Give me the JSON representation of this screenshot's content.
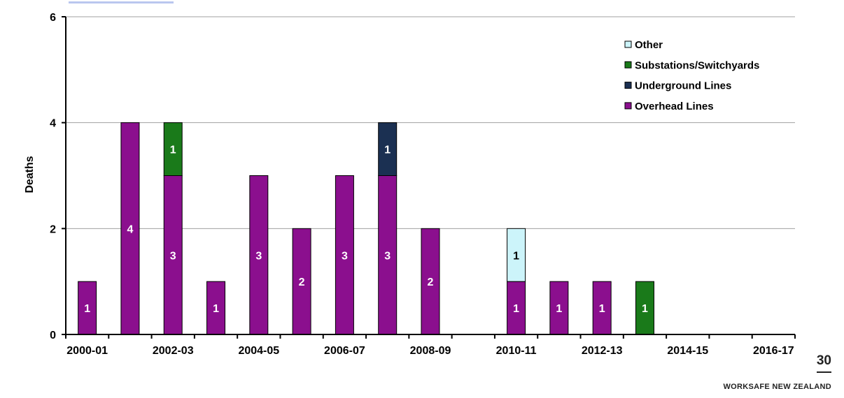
{
  "chart_data": {
    "type": "bar",
    "stacked": true,
    "ylabel": "Deaths",
    "xlabel": "",
    "ylim": [
      0,
      6
    ],
    "yticks": [
      0,
      2,
      4,
      6
    ],
    "grid": true,
    "legend_position": "top-right",
    "x_tick_labels": [
      "2000-01",
      "2002-03",
      "2004-05",
      "2006-07",
      "2008-09",
      "2010-11",
      "2012-13",
      "2014-15",
      "2016-17"
    ],
    "x_tick_label_every": 2,
    "categories": [
      "2000-01",
      "2001-02",
      "2002-03",
      "2003-04",
      "2004-05",
      "2005-06",
      "2006-07",
      "2007-08",
      "2008-09",
      "2009-10",
      "2010-11",
      "2011-12",
      "2012-13",
      "2013-14",
      "2014-15",
      "2015-16",
      "2016-17"
    ],
    "series": [
      {
        "name": "Overhead Lines",
        "color": "#8b0f8e",
        "values": [
          1,
          4,
          3,
          1,
          3,
          2,
          3,
          3,
          2,
          0,
          1,
          1,
          1,
          0,
          0,
          0,
          0
        ]
      },
      {
        "name": "Underground Lines",
        "color": "#1b3052",
        "values": [
          0,
          0,
          0,
          0,
          0,
          0,
          0,
          1,
          0,
          0,
          0,
          0,
          0,
          0,
          0,
          0,
          0
        ]
      },
      {
        "name": "Substations/Switchyards",
        "color": "#1a7a1a",
        "values": [
          0,
          0,
          1,
          0,
          0,
          0,
          0,
          0,
          0,
          0,
          0,
          0,
          0,
          1,
          0,
          0,
          0
        ]
      },
      {
        "name": "Other",
        "color": "#ccf4fa",
        "values": [
          0,
          0,
          0,
          0,
          0,
          0,
          0,
          0,
          0,
          0,
          1,
          0,
          0,
          0,
          0,
          0,
          0
        ]
      }
    ],
    "legend_order": [
      "Other",
      "Substations/Switchyards",
      "Underground Lines",
      "Overhead Lines"
    ]
  },
  "footer": {
    "page_number": "30",
    "brand": "WORKSAFE NEW ZEALAND"
  }
}
